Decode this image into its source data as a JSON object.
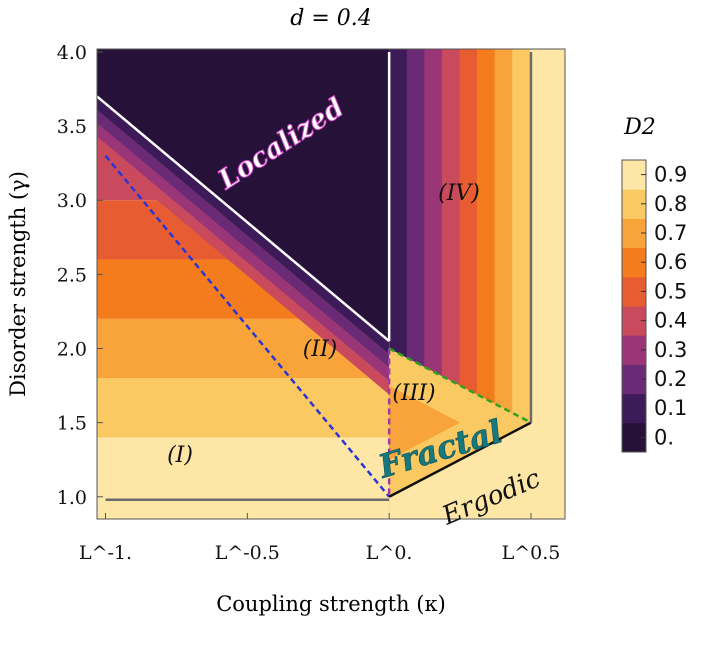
{
  "chart_data": {
    "type": "heatmap",
    "title": "d = 0.4",
    "xlabel": "Coupling strength (κ)",
    "ylabel": "Disorder strength (γ)",
    "x_ticks": [
      "L^-1.",
      "L^-0.5",
      "L^0.",
      "L^0.5"
    ],
    "x_tick_values": [
      -1,
      -0.5,
      0,
      0.5
    ],
    "xlim": [
      -1.03,
      0.62
    ],
    "y_ticks": [
      "1.0",
      "1.5",
      "2.0",
      "2.5",
      "3.0",
      "3.5",
      "4.0"
    ],
    "y_tick_values": [
      1.0,
      1.5,
      2.0,
      2.5,
      3.0,
      3.5,
      4.0
    ],
    "ylim": [
      0.85,
      4.02
    ],
    "colorbar": {
      "label": "D2",
      "ticks": [
        "0.",
        "0.1",
        "0.2",
        "0.3",
        "0.4",
        "0.5",
        "0.6",
        "0.7",
        "0.8",
        "0.9"
      ],
      "levels": [
        0.0,
        0.1,
        0.2,
        0.3,
        0.4,
        0.5,
        0.6,
        0.7,
        0.8,
        0.9
      ],
      "colors": [
        "#261238",
        "#3d1a58",
        "#6a2a75",
        "#9a3677",
        "#c84a5c",
        "#e85c32",
        "#f47c1c",
        "#f9a43a",
        "#fbc962",
        "#fde6a6"
      ]
    },
    "regions": [
      {
        "id": "I",
        "label": "(I)"
      },
      {
        "id": "II",
        "label": "(II)"
      },
      {
        "id": "III",
        "label": "(III)"
      },
      {
        "id": "IV",
        "label": "(IV)"
      }
    ],
    "phase_labels": {
      "localized": "Localized",
      "fractal": "Fractal",
      "ergodic": "Ergodic"
    },
    "boundaries": [
      {
        "name": "localized-edge",
        "style": "white",
        "points": [
          [
            -1.03,
            3.7
          ],
          [
            0.0,
            2.05
          ]
        ]
      },
      {
        "name": "localized-right-edge",
        "style": "white",
        "points": [
          [
            0.0,
            2.05
          ],
          [
            0.0,
            4.0
          ]
        ]
      },
      {
        "name": "blue-dashed",
        "style": "blue-dashed",
        "points": [
          [
            -1.0,
            3.3
          ],
          [
            0.0,
            1.0
          ]
        ]
      },
      {
        "name": "purple-dashed",
        "style": "purple-dashed",
        "points": [
          [
            0.0,
            2.0
          ],
          [
            0.0,
            1.0
          ]
        ]
      },
      {
        "name": "green-dashed",
        "style": "green-dashed",
        "points": [
          [
            0.0,
            2.0
          ],
          [
            0.5,
            1.5
          ]
        ]
      },
      {
        "name": "ergodic-edge",
        "style": "black",
        "points": [
          [
            0.0,
            1.0
          ],
          [
            0.5,
            1.5
          ]
        ]
      },
      {
        "name": "bottom-gray",
        "style": "gray",
        "points": [
          [
            -1.0,
            0.98
          ],
          [
            0.0,
            0.98
          ]
        ]
      },
      {
        "name": "right-gray",
        "style": "gray",
        "points": [
          [
            0.5,
            1.5
          ],
          [
            0.5,
            4.0
          ]
        ]
      }
    ]
  }
}
